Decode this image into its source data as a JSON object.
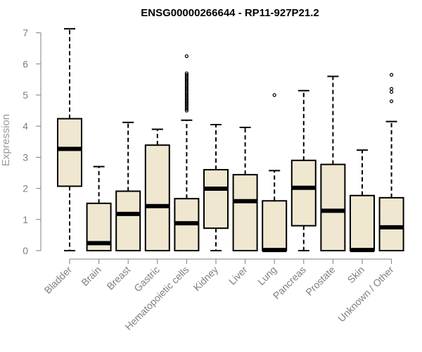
{
  "chart_data": {
    "type": "boxplot",
    "title": "ENSG00000266644 - RP11-927P21.2",
    "xlabel": "",
    "ylabel": "Expression",
    "ylim": [
      0,
      7.2
    ],
    "yticks": [
      0,
      1,
      2,
      3,
      4,
      5,
      6,
      7
    ],
    "grid": false,
    "box_fill": "#efe7cf",
    "categories": [
      "Bladder",
      "Brain",
      "Breast",
      "Gastric",
      "Hematopoietic cells",
      "Kidney",
      "Liver",
      "Lung",
      "Pancreas",
      "Prostate",
      "Skin",
      "Unknown / Other"
    ],
    "boxes": [
      {
        "min": 0.0,
        "q1": 2.07,
        "median": 3.27,
        "q3": 4.24,
        "max": 7.13,
        "outliers": []
      },
      {
        "min": 0.0,
        "q1": 0.0,
        "median": 0.24,
        "q3": 1.52,
        "max": 2.7,
        "outliers": []
      },
      {
        "min": 0.0,
        "q1": 0.0,
        "median": 1.18,
        "q3": 1.91,
        "max": 4.12,
        "outliers": []
      },
      {
        "min": 0.0,
        "q1": 0.0,
        "median": 1.43,
        "q3": 3.39,
        "max": 3.9,
        "outliers": []
      },
      {
        "min": 0.0,
        "q1": 0.0,
        "median": 0.88,
        "q3": 1.67,
        "max": 4.19,
        "outliers": [
          4.5,
          4.55,
          4.6,
          4.65,
          4.7,
          4.75,
          4.8,
          4.85,
          4.9,
          4.95,
          5.0,
          5.05,
          5.1,
          5.15,
          5.2,
          5.25,
          5.3,
          5.35,
          5.4,
          5.45,
          5.5,
          5.55,
          5.6,
          5.65,
          5.7,
          6.25
        ]
      },
      {
        "min": 0.0,
        "q1": 0.72,
        "median": 1.99,
        "q3": 2.6,
        "max": 4.05,
        "outliers": []
      },
      {
        "min": 0.0,
        "q1": 0.0,
        "median": 1.59,
        "q3": 2.44,
        "max": 3.96,
        "outliers": []
      },
      {
        "min": 0.0,
        "q1": 0.0,
        "median": 0.02,
        "q3": 1.6,
        "max": 2.57,
        "outliers": [
          5.0
        ]
      },
      {
        "min": 0.0,
        "q1": 0.8,
        "median": 2.02,
        "q3": 2.9,
        "max": 5.14,
        "outliers": []
      },
      {
        "min": 0.0,
        "q1": 0.0,
        "median": 1.28,
        "q3": 2.77,
        "max": 5.6,
        "outliers": []
      },
      {
        "min": 0.0,
        "q1": 0.0,
        "median": 0.02,
        "q3": 1.77,
        "max": 3.23,
        "outliers": []
      },
      {
        "min": 0.0,
        "q1": 0.0,
        "median": 0.75,
        "q3": 1.7,
        "max": 4.15,
        "outliers": [
          4.8,
          5.1,
          5.2,
          5.65
        ]
      }
    ]
  }
}
